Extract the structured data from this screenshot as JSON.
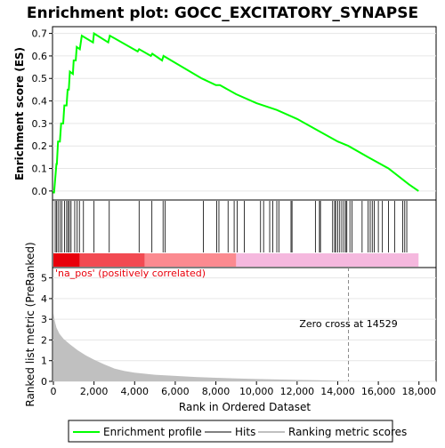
{
  "chart_data": {
    "title": "Enrichment plot: GOCC_EXCITATORY_SYNAPSE",
    "type": "line",
    "total_ranks": 17980,
    "top_panel": {
      "ylabel": "Enrichment score (ES)",
      "ylim": [
        -0.04,
        0.73
      ],
      "yticks": [
        0.0,
        0.1,
        0.2,
        0.3,
        0.4,
        0.5,
        0.6,
        0.7
      ],
      "ytick_labels": [
        "0.0",
        "0.1",
        "0.2",
        "0.3",
        "0.4",
        "0.5",
        "0.6",
        "0.7"
      ],
      "series_name": "Enrichment profile",
      "series_color": "#00ff00",
      "es_points": [
        [
          0,
          0
        ],
        [
          30,
          -0.01
        ],
        [
          150,
          0.12
        ],
        [
          170,
          0.12
        ],
        [
          230,
          0.22
        ],
        [
          320,
          0.22
        ],
        [
          380,
          0.3
        ],
        [
          480,
          0.3
        ],
        [
          540,
          0.38
        ],
        [
          650,
          0.38
        ],
        [
          700,
          0.45
        ],
        [
          760,
          0.45
        ],
        [
          810,
          0.53
        ],
        [
          960,
          0.52
        ],
        [
          1000,
          0.58
        ],
        [
          1100,
          0.58
        ],
        [
          1150,
          0.64
        ],
        [
          1300,
          0.63
        ],
        [
          1400,
          0.69
        ],
        [
          1950,
          0.66
        ],
        [
          2000,
          0.7
        ],
        [
          2700,
          0.66
        ],
        [
          2780,
          0.69
        ],
        [
          4150,
          0.62
        ],
        [
          4220,
          0.63
        ],
        [
          4800,
          0.6
        ],
        [
          4870,
          0.61
        ],
        [
          5350,
          0.58
        ],
        [
          5420,
          0.6
        ],
        [
          7300,
          0.5
        ],
        [
          8000,
          0.47
        ],
        [
          8200,
          0.47
        ],
        [
          9000,
          0.43
        ],
        [
          10000,
          0.39
        ],
        [
          11000,
          0.36
        ],
        [
          12000,
          0.32
        ],
        [
          13000,
          0.27
        ],
        [
          14000,
          0.22
        ],
        [
          14529,
          0.2
        ],
        [
          15500,
          0.15
        ],
        [
          16500,
          0.1
        ],
        [
          17500,
          0.03
        ],
        [
          17980,
          0.0
        ]
      ]
    },
    "hits_panel": {
      "series_name": "Hits",
      "hit_ranks": [
        90,
        160,
        230,
        330,
        420,
        550,
        650,
        720,
        790,
        870,
        1050,
        1170,
        1280,
        1480,
        2000,
        2750,
        4220,
        4850,
        5400,
        5500,
        7380,
        8040,
        8150,
        8600,
        8900,
        9050,
        9400,
        10200,
        10350,
        10650,
        10800,
        11000,
        11100,
        11700,
        11750,
        12900,
        13100,
        13150,
        13750,
        13850,
        13900,
        14000,
        14100,
        14200,
        14300,
        14400,
        14450,
        14600,
        14700,
        15200,
        15500,
        15600,
        15700,
        15800,
        16000,
        16200,
        16500,
        16800,
        17200,
        17300,
        17400
      ]
    },
    "ranking_bar": {
      "segments": [
        {
          "start": 0,
          "end": 1300,
          "color": "#e8000b"
        },
        {
          "start": 1300,
          "end": 4500,
          "color": "#f24a52"
        },
        {
          "start": 4500,
          "end": 9000,
          "color": "#fb8a90"
        },
        {
          "start": 9000,
          "end": 17980,
          "color": "#f5b8de"
        }
      ]
    },
    "bottom_panel": {
      "ylabel": "Ranked list metric (PreRanked)",
      "xlabel": "Rank in Ordered Dataset",
      "ylim": [
        0,
        5.5
      ],
      "yticks": [
        0,
        1,
        2,
        3,
        4,
        5
      ],
      "ytick_labels": [
        "0",
        "1",
        "2",
        "3",
        "4",
        "5"
      ],
      "xticks": [
        0,
        2000,
        4000,
        6000,
        8000,
        10000,
        12000,
        14000,
        16000,
        18000
      ],
      "xtick_labels": [
        "0",
        "2,000",
        "4,000",
        "6,000",
        "8,000",
        "10,000",
        "12,000",
        "14,000",
        "16,000",
        "18,000"
      ],
      "series_name": "Ranking metric scores",
      "series_color": "#c0c0c0",
      "metric_points": [
        [
          0,
          3.3
        ],
        [
          50,
          3.0
        ],
        [
          150,
          2.6
        ],
        [
          300,
          2.3
        ],
        [
          500,
          2.05
        ],
        [
          800,
          1.8
        ],
        [
          1200,
          1.5
        ],
        [
          1600,
          1.25
        ],
        [
          2000,
          1.05
        ],
        [
          2500,
          0.82
        ],
        [
          3000,
          0.62
        ],
        [
          3500,
          0.5
        ],
        [
          4000,
          0.42
        ],
        [
          5000,
          0.32
        ],
        [
          6000,
          0.26
        ],
        [
          7000,
          0.21
        ],
        [
          8000,
          0.17
        ],
        [
          9000,
          0.14
        ],
        [
          10000,
          0.11
        ],
        [
          11000,
          0.09
        ],
        [
          12000,
          0.07
        ],
        [
          13000,
          0.05
        ],
        [
          14000,
          0.025
        ],
        [
          14529,
          0.0
        ]
      ],
      "pos_label": "'na_pos' (positively correlated)",
      "zero_cross_rank": 14529,
      "zero_cross_label": "Zero cross at 14529"
    },
    "legend": [
      {
        "label": "Enrichment profile",
        "color": "#00ff00"
      },
      {
        "label": "Hits",
        "color": "#000000"
      },
      {
        "label": "Ranking metric scores",
        "color": "#c0c0c0"
      }
    ]
  }
}
